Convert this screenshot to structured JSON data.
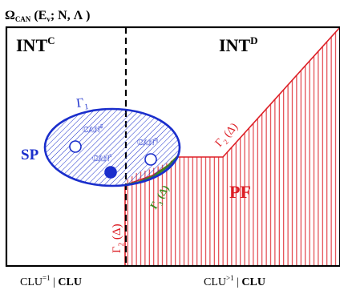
{
  "title": {
    "main": "Ω",
    "main_sub": "CAN",
    "args_open": "(E",
    "args_sub": "v",
    "args_rest": "; N, Λ )"
  },
  "regions": {
    "int_c": {
      "main": "INT",
      "sup": "C"
    },
    "int_d": {
      "main": "INT",
      "sup": "D"
    },
    "sp": "SP",
    "pf": "PF"
  },
  "states": {
    "can_delta": {
      "main": "CAN",
      "sup": "δ"
    },
    "can_eta": {
      "main": "CAN",
      "sup": "η"
    },
    "can_iota": {
      "main": "CAN",
      "sup": "ι"
    }
  },
  "boundaries": {
    "gamma1": {
      "main": "Γ",
      "sub": "1"
    },
    "gamma2_upper": {
      "main": "Γ",
      "sub": "2",
      "arg": " (Δ)"
    },
    "gamma2_lower": {
      "main": "Γ",
      "sub": "2",
      "arg": " (Δ)"
    },
    "gamma3": {
      "main": "Γ",
      "sub": "3",
      "arg": " (Δ)"
    }
  },
  "bottom_labels": {
    "left": {
      "pre": "CLU",
      "sup": "=1",
      "sep": " | ",
      "bold": "CLU"
    },
    "right": {
      "pre": "CLU",
      "sup": ">1",
      "sep": " | ",
      "bold": "CLU"
    }
  },
  "colors": {
    "sp_blue": "#1a2ecc",
    "pf_red": "#dd1f26",
    "gamma3_green": "#3f8a1f",
    "frame": "#000000"
  }
}
